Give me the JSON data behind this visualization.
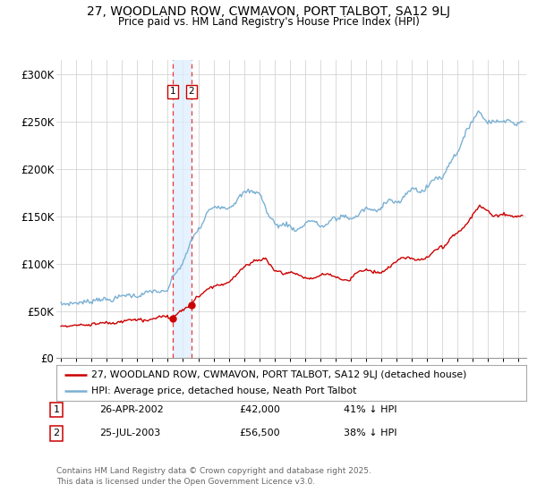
{
  "title_line1": "27, WOODLAND ROW, CWMAVON, PORT TALBOT, SA12 9LJ",
  "title_line2": "Price paid vs. HM Land Registry's House Price Index (HPI)",
  "legend_red": "27, WOODLAND ROW, CWMAVON, PORT TALBOT, SA12 9LJ (detached house)",
  "legend_blue": "HPI: Average price, detached house, Neath Port Talbot",
  "sale1_date": "26-APR-2002",
  "sale1_price": "£42,000",
  "sale1_hpi": "41% ↓ HPI",
  "sale1_year": 2002.32,
  "sale1_value": 42000,
  "sale2_date": "25-JUL-2003",
  "sale2_price": "£56,500",
  "sale2_hpi": "38% ↓ HPI",
  "sale2_year": 2003.56,
  "sale2_value": 56500,
  "ylabel_ticks": [
    "£0",
    "£50K",
    "£100K",
    "£150K",
    "£200K",
    "£250K",
    "£300K"
  ],
  "ytick_values": [
    0,
    50000,
    100000,
    150000,
    200000,
    250000,
    300000
  ],
  "ylim": [
    0,
    315000
  ],
  "xlim_start": 1994.7,
  "xlim_end": 2025.5,
  "background_color": "#ffffff",
  "plot_bg_color": "#ffffff",
  "grid_color": "#cccccc",
  "red_color": "#cc0000",
  "blue_color": "#7ab0d4",
  "dashed_color": "#ee3333",
  "shade_color": "#ddeeff",
  "footer": "Contains HM Land Registry data © Crown copyright and database right 2025.\nThis data is licensed under the Open Government Licence v3.0."
}
